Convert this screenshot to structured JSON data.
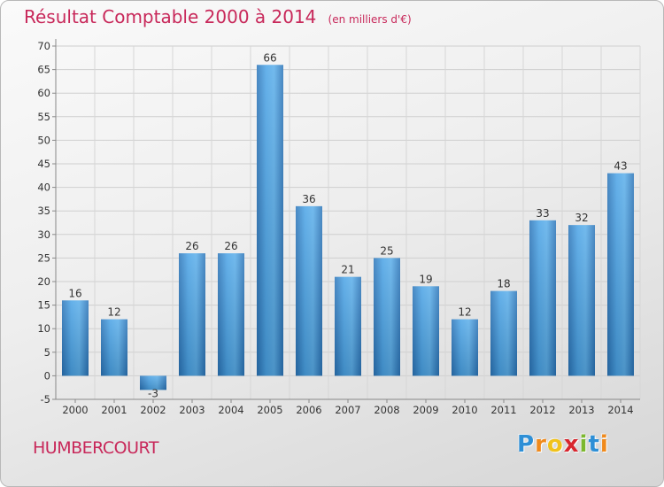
{
  "header": {
    "title": "Résultat Comptable 2000 à 2014",
    "unit": "(en milliers d'€)"
  },
  "footer": {
    "commune": "HUMBERCOURT",
    "logo_letters": [
      {
        "char": "P",
        "color": "#2e8fd6"
      },
      {
        "char": "r",
        "color": "#f08a1c"
      },
      {
        "char": "o",
        "color": "#f0c21c"
      },
      {
        "char": "x",
        "color": "#d8262e"
      },
      {
        "char": "i",
        "color": "#7cb82f"
      },
      {
        "char": "t",
        "color": "#2e8fd6"
      },
      {
        "char": "i",
        "color": "#f08a1c"
      }
    ]
  },
  "chart_data": {
    "type": "bar",
    "categories": [
      "2000",
      "2001",
      "2002",
      "2003",
      "2004",
      "2005",
      "2006",
      "2007",
      "2008",
      "2009",
      "2010",
      "2011",
      "2012",
      "2013",
      "2014"
    ],
    "values": [
      16,
      12,
      -3,
      26,
      26,
      66,
      36,
      21,
      25,
      19,
      12,
      18,
      33,
      32,
      43
    ],
    "ylim": [
      -5,
      70
    ],
    "yticks": [
      -5,
      0,
      5,
      10,
      15,
      20,
      25,
      30,
      35,
      40,
      45,
      50,
      55,
      60,
      65,
      70
    ],
    "grid": true,
    "bar_color": "#3d8fd0",
    "title": "Résultat Comptable 2000 à 2014",
    "xlabel": "",
    "ylabel": ""
  }
}
